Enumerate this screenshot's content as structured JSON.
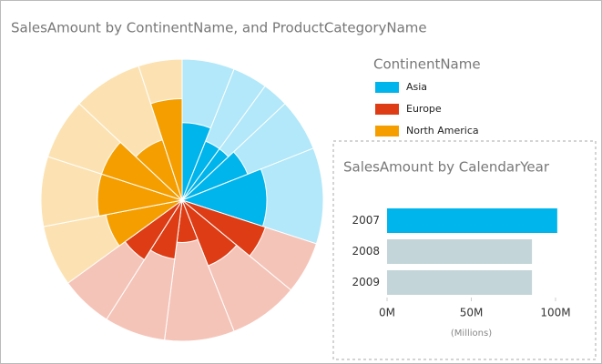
{
  "chart_data": [
    {
      "type": "pie",
      "title": "SalesAmount by ContinentName, and ProductCategoryName",
      "legend_title": "ContinentName",
      "series": [
        {
          "name": "Asia",
          "color": "#00b4ec",
          "values": [
            6,
            4,
            3,
            6,
            11
          ],
          "highlight_values": [
            0.55,
            0.45,
            0.45,
            0.5,
            0.6
          ]
        },
        {
          "name": "Europe",
          "color": "#dd3c14",
          "values": [
            6,
            8,
            8,
            7,
            6
          ],
          "highlight_values": [
            0.62,
            0.5,
            0.3,
            0.42,
            0.5
          ]
        },
        {
          "name": "North America",
          "color": "#f59e00",
          "values": [
            7,
            8,
            7,
            8,
            5
          ],
          "highlight_values": [
            0.55,
            0.6,
            0.6,
            0.45,
            0.72
          ]
        }
      ]
    },
    {
      "type": "hbar",
      "title": "SalesAmount by CalendarYear",
      "categories": [
        "2007",
        "2008",
        "2009"
      ],
      "values": [
        101,
        86,
        86
      ],
      "colors": [
        "#00b4ec",
        "#c3d5d8",
        "#c3d5d8"
      ],
      "xlim": [
        0,
        100
      ],
      "xticks": [
        {
          "value": 0,
          "label": "0M"
        },
        {
          "value": 50,
          "label": "50M"
        },
        {
          "value": 100,
          "label": "100M"
        }
      ],
      "xlabel": "(Millions)"
    }
  ]
}
